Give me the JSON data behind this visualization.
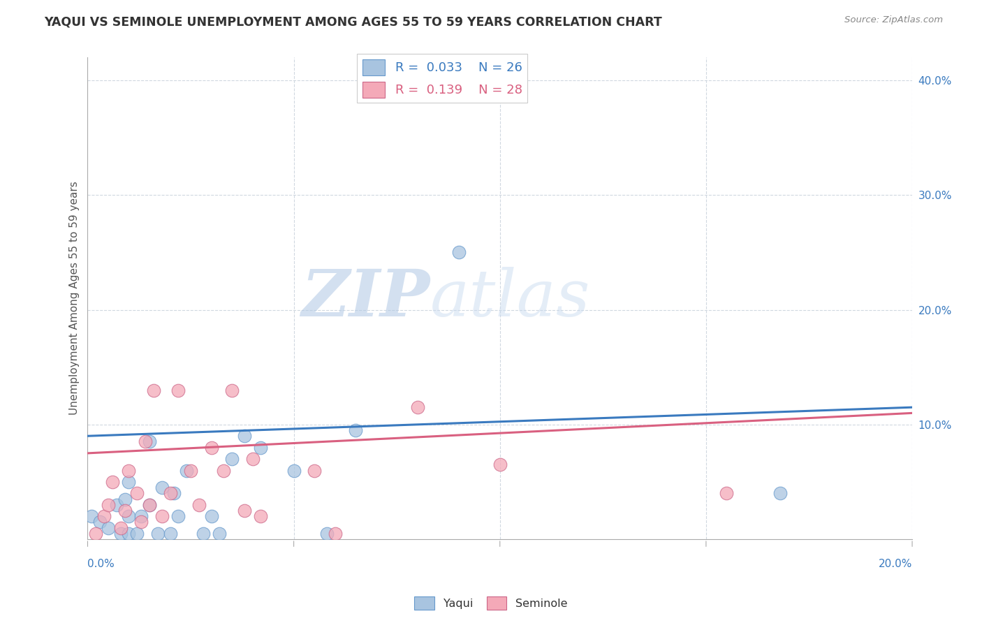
{
  "title": "YAQUI VS SEMINOLE UNEMPLOYMENT AMONG AGES 55 TO 59 YEARS CORRELATION CHART",
  "source": "Source: ZipAtlas.com",
  "ylabel": "Unemployment Among Ages 55 to 59 years",
  "xlim": [
    0.0,
    0.2
  ],
  "ylim": [
    0.0,
    0.42
  ],
  "yticks": [
    0.0,
    0.1,
    0.2,
    0.3,
    0.4
  ],
  "ytick_labels": [
    "",
    "10.0%",
    "20.0%",
    "30.0%",
    "40.0%"
  ],
  "yaqui_color": "#a8c4e0",
  "yaqui_edge_color": "#6699cc",
  "seminole_color": "#f4a9b8",
  "seminole_edge_color": "#cc6688",
  "yaqui_line_color": "#3a7abf",
  "seminole_line_color": "#d96080",
  "watermark_zip_color": "#b8cfe8",
  "watermark_atlas_color": "#c8d8e8",
  "background_color": "#ffffff",
  "grid_color": "#d0d8e0",
  "tick_color": "#3a7abf",
  "title_color": "#333333",
  "source_color": "#888888",
  "ylabel_color": "#555555",
  "yaqui_x": [
    0.001,
    0.003,
    0.005,
    0.007,
    0.008,
    0.009,
    0.01,
    0.01,
    0.01,
    0.012,
    0.013,
    0.015,
    0.015,
    0.017,
    0.018,
    0.02,
    0.021,
    0.022,
    0.024,
    0.028,
    0.03,
    0.032,
    0.035,
    0.038,
    0.042,
    0.05,
    0.058,
    0.065,
    0.09,
    0.168
  ],
  "yaqui_y": [
    0.02,
    0.015,
    0.01,
    0.03,
    0.005,
    0.035,
    0.005,
    0.02,
    0.05,
    0.005,
    0.02,
    0.085,
    0.03,
    0.005,
    0.045,
    0.005,
    0.04,
    0.02,
    0.06,
    0.005,
    0.02,
    0.005,
    0.07,
    0.09,
    0.08,
    0.06,
    0.005,
    0.095,
    0.25,
    0.04
  ],
  "seminole_x": [
    0.002,
    0.004,
    0.005,
    0.006,
    0.008,
    0.009,
    0.01,
    0.012,
    0.013,
    0.014,
    0.015,
    0.016,
    0.018,
    0.02,
    0.022,
    0.025,
    0.027,
    0.03,
    0.033,
    0.035,
    0.038,
    0.04,
    0.042,
    0.055,
    0.06,
    0.08,
    0.1,
    0.155
  ],
  "seminole_y": [
    0.005,
    0.02,
    0.03,
    0.05,
    0.01,
    0.025,
    0.06,
    0.04,
    0.015,
    0.085,
    0.03,
    0.13,
    0.02,
    0.04,
    0.13,
    0.06,
    0.03,
    0.08,
    0.06,
    0.13,
    0.025,
    0.07,
    0.02,
    0.06,
    0.005,
    0.115,
    0.065,
    0.04
  ],
  "yaqui_line_x": [
    0.0,
    0.2
  ],
  "yaqui_line_y": [
    0.09,
    0.115
  ],
  "seminole_line_x": [
    0.0,
    0.2
  ],
  "seminole_line_y": [
    0.075,
    0.11
  ]
}
